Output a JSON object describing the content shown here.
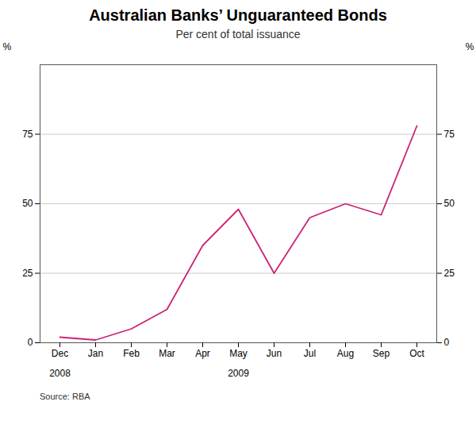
{
  "chart_data": {
    "type": "line",
    "title": "Australian Banks’ Unguaranteed Bonds",
    "subtitle": "Per cent of total issuance",
    "source": "Source: RBA",
    "categories": [
      "Dec",
      "Jan",
      "Feb",
      "Mar",
      "Apr",
      "May",
      "Jun",
      "Jul",
      "Aug",
      "Sep",
      "Oct"
    ],
    "values": [
      2,
      1,
      5,
      12,
      35,
      48,
      25,
      45,
      50,
      46,
      78
    ],
    "color": "#cc2277",
    "ylim": [
      0,
      100
    ],
    "yticks": [
      0,
      25,
      50,
      75
    ],
    "y_label": "%",
    "y2lim": [
      0,
      100
    ],
    "y2ticks": [
      0,
      25,
      50,
      75
    ],
    "y2_label": "%",
    "grid": true,
    "annotations": [
      {
        "text": "2008",
        "category": "Dec"
      },
      {
        "text": "2009",
        "category": "May"
      }
    ]
  }
}
